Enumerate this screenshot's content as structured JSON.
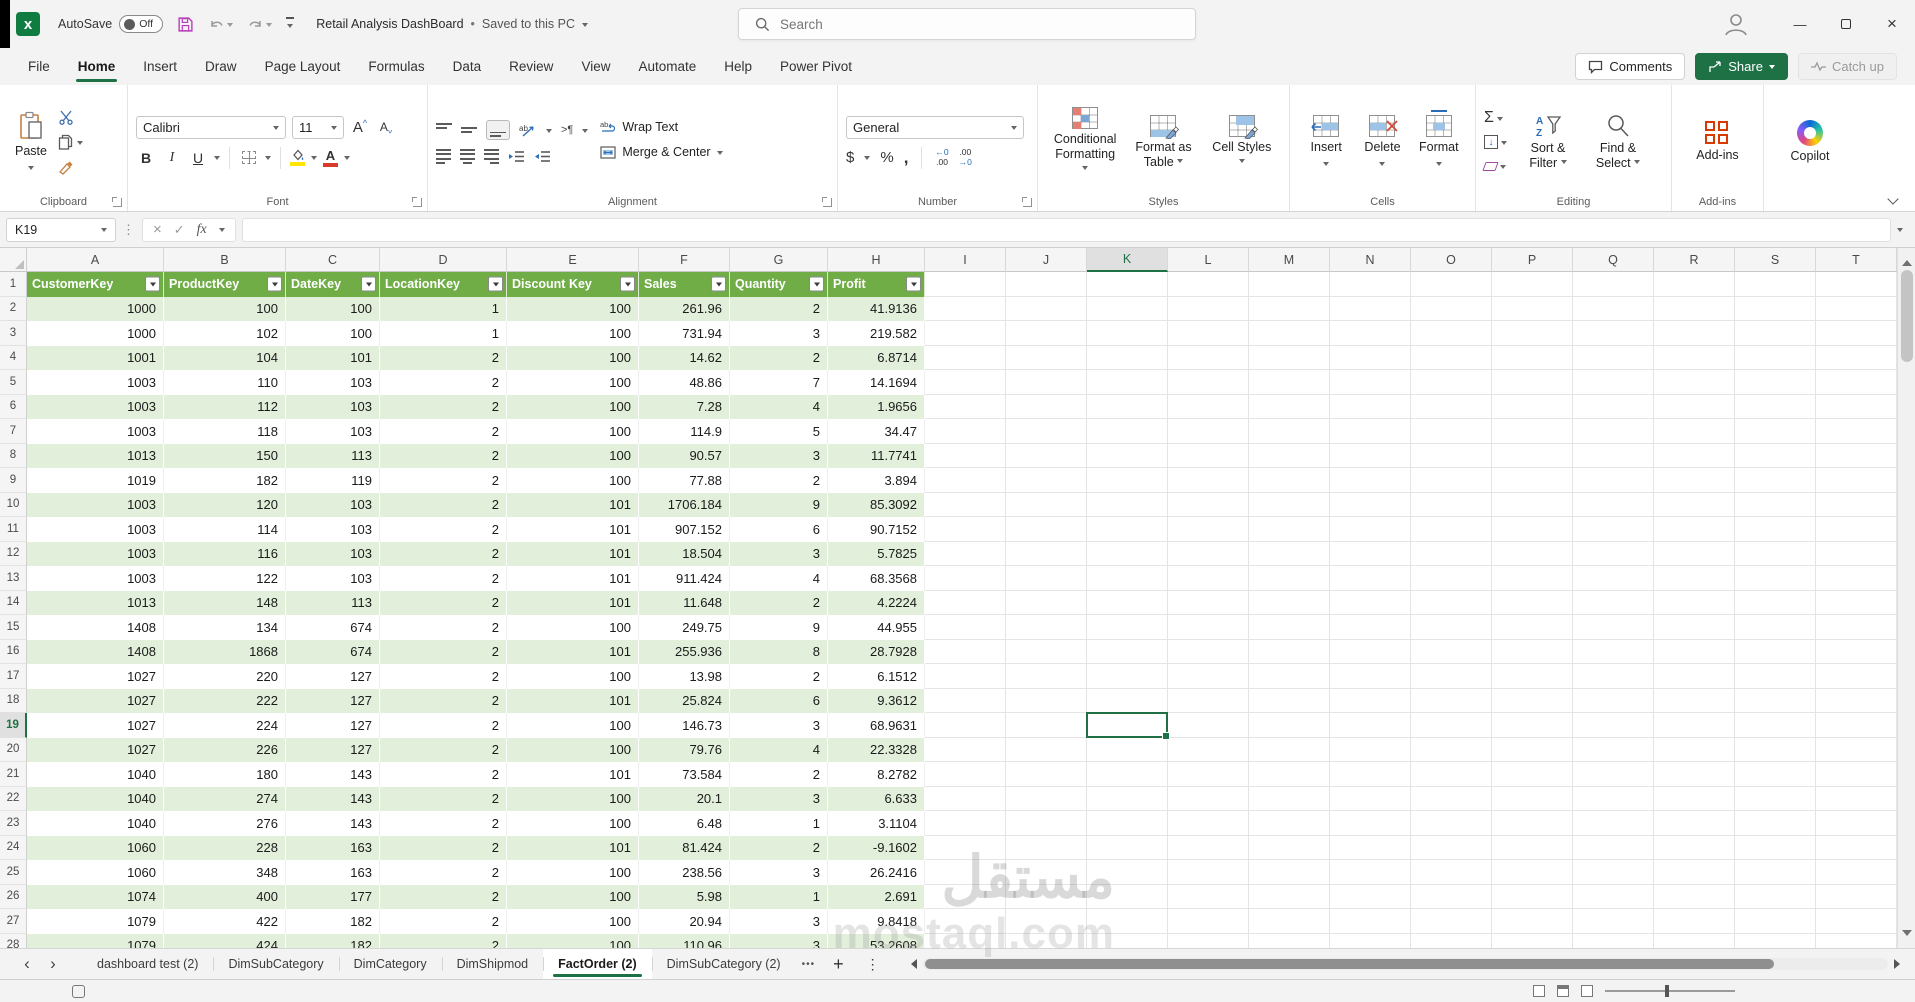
{
  "colors": {
    "accent_green": "#1E7145",
    "table_header_green": "#70AD47",
    "band_green": "#E2EFDA",
    "excel_logo_green": "#107c41"
  },
  "titlebar": {
    "logo_letter": "x",
    "autosave_label": "AutoSave",
    "autosave_state": "Off",
    "doc_title": "Retail Analysis DashBoard",
    "title_separator": "•",
    "save_status": "Saved to this PC",
    "search_placeholder": "Search",
    "window": {
      "minimize": "—",
      "close": "×"
    }
  },
  "ribbon_tabs": {
    "items": [
      {
        "label": "File",
        "active": false
      },
      {
        "label": "Home",
        "active": true
      },
      {
        "label": "Insert",
        "active": false
      },
      {
        "label": "Draw",
        "active": false
      },
      {
        "label": "Page Layout",
        "active": false
      },
      {
        "label": "Formulas",
        "active": false
      },
      {
        "label": "Data",
        "active": false
      },
      {
        "label": "Review",
        "active": false
      },
      {
        "label": "View",
        "active": false
      },
      {
        "label": "Automate",
        "active": false
      },
      {
        "label": "Help",
        "active": false
      },
      {
        "label": "Power Pivot",
        "active": false
      }
    ],
    "comments": "Comments",
    "share": "Share",
    "catch_up": "Catch up"
  },
  "ribbon": {
    "clipboard": {
      "caption": "Clipboard",
      "paste": "Paste"
    },
    "font": {
      "caption": "Font",
      "name": "Calibri",
      "size": "11",
      "bold": "B",
      "italic": "I",
      "underline": "U",
      "grow": "A",
      "shrink": "A"
    },
    "alignment": {
      "caption": "Alignment",
      "wrap": "Wrap Text",
      "merge": "Merge & Center"
    },
    "number": {
      "caption": "Number",
      "format": "General",
      "currency": "$",
      "percent": "%",
      "comma": ","
    },
    "styles": {
      "caption": "Styles",
      "buttons": [
        "Conditional Formatting",
        "Format as Table",
        "Cell Styles"
      ]
    },
    "cells": {
      "caption": "Cells",
      "buttons": [
        "Insert",
        "Delete",
        "Format"
      ]
    },
    "editing": {
      "caption": "Editing",
      "autosum": "Σ",
      "sort_filter": "Sort & Filter",
      "find_select": "Find & Select"
    },
    "addins": {
      "caption": "Add-ins",
      "label": "Add-ins"
    },
    "copilot": {
      "label": "Copilot"
    }
  },
  "formula_bar": {
    "cell_reference": "K19",
    "cancel": "×",
    "enter": "✓",
    "fx": "fx",
    "formula_value": ""
  },
  "grid": {
    "columns": [
      "A",
      "B",
      "C",
      "D",
      "E",
      "F",
      "G",
      "H",
      "I",
      "J",
      "K",
      "L",
      "M",
      "N",
      "O",
      "P",
      "Q",
      "R",
      "S",
      "T"
    ],
    "selected_column": "K",
    "selected_row": 19,
    "selected_cell": "K19"
  },
  "table": {
    "headers": [
      "CustomerKey",
      "ProductKey",
      "DateKey",
      "LocationKey",
      "Discount Key",
      "Sales",
      "Quantity",
      "Profit"
    ],
    "first_row_number": 2,
    "rows": [
      [
        1000,
        100,
        100,
        1,
        100,
        261.96,
        2,
        41.9136
      ],
      [
        1000,
        102,
        100,
        1,
        100,
        731.94,
        3,
        219.582
      ],
      [
        1001,
        104,
        101,
        2,
        100,
        14.62,
        2,
        6.8714
      ],
      [
        1003,
        110,
        103,
        2,
        100,
        48.86,
        7,
        14.1694
      ],
      [
        1003,
        112,
        103,
        2,
        100,
        7.28,
        4,
        1.9656
      ],
      [
        1003,
        118,
        103,
        2,
        100,
        114.9,
        5,
        34.47
      ],
      [
        1013,
        150,
        113,
        2,
        100,
        90.57,
        3,
        11.7741
      ],
      [
        1019,
        182,
        119,
        2,
        100,
        77.88,
        2,
        3.894
      ],
      [
        1003,
        120,
        103,
        2,
        101,
        1706.184,
        9,
        85.3092
      ],
      [
        1003,
        114,
        103,
        2,
        101,
        907.152,
        6,
        90.7152
      ],
      [
        1003,
        116,
        103,
        2,
        101,
        18.504,
        3,
        5.7825
      ],
      [
        1003,
        122,
        103,
        2,
        101,
        911.424,
        4,
        68.3568
      ],
      [
        1013,
        148,
        113,
        2,
        101,
        11.648,
        2,
        4.2224
      ],
      [
        1408,
        134,
        674,
        2,
        100,
        249.75,
        9,
        44.955
      ],
      [
        1408,
        1868,
        674,
        2,
        101,
        255.936,
        8,
        28.7928
      ],
      [
        1027,
        220,
        127,
        2,
        100,
        13.98,
        2,
        6.1512
      ],
      [
        1027,
        222,
        127,
        2,
        101,
        25.824,
        6,
        9.3612
      ],
      [
        1027,
        224,
        127,
        2,
        100,
        146.73,
        3,
        68.9631
      ],
      [
        1027,
        226,
        127,
        2,
        100,
        79.76,
        4,
        22.3328
      ],
      [
        1040,
        180,
        143,
        2,
        101,
        73.584,
        2,
        8.2782
      ],
      [
        1040,
        274,
        143,
        2,
        100,
        20.1,
        3,
        6.633
      ],
      [
        1040,
        276,
        143,
        2,
        100,
        6.48,
        1,
        3.1104
      ],
      [
        1060,
        228,
        163,
        2,
        101,
        81.424,
        2,
        -9.1602
      ],
      [
        1060,
        348,
        163,
        2,
        100,
        238.56,
        3,
        26.2416
      ],
      [
        1074,
        400,
        177,
        2,
        100,
        5.98,
        1,
        2.691
      ],
      [
        1079,
        422,
        182,
        2,
        100,
        20.94,
        3,
        9.8418
      ],
      [
        1079,
        424,
        182,
        2,
        100,
        110.96,
        3,
        53.2608
      ]
    ]
  },
  "sheet_bar": {
    "nav_left": "‹",
    "nav_right": "›",
    "tabs": [
      {
        "label": "dashboard test (2)",
        "active": false
      },
      {
        "label": "DimSubCategory",
        "active": false
      },
      {
        "label": "DimCategory",
        "active": false
      },
      {
        "label": "DimShipmod",
        "active": false
      },
      {
        "label": "FactOrder (2)",
        "active": true
      },
      {
        "label": "DimSubCategory (2)",
        "active": false
      }
    ],
    "more": "•••",
    "add_sheet": "+",
    "menu": "⋮"
  },
  "watermark": {
    "arabic": "مستقل",
    "latin": "mostaql.com"
  }
}
